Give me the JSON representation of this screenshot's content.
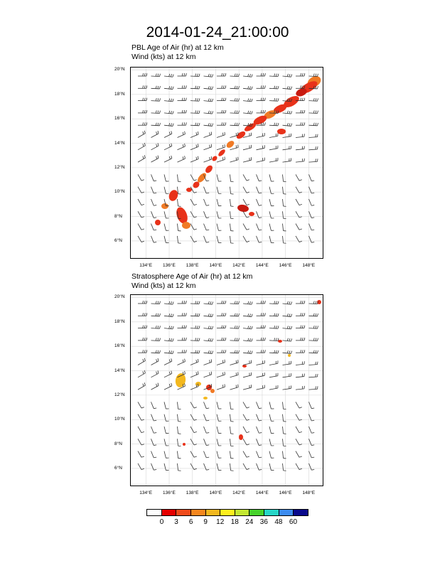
{
  "figure": {
    "title": "2014-01-24_21:00:00"
  },
  "panels": [
    {
      "line1": "PBL Age of Air   (hr)     at   12 km",
      "line2": "Wind   (kts)     at   12 km"
    },
    {
      "line1": "Stratosphere Age of Air   (hr)     at   12 km",
      "line2": "Wind   (kts)     at   12 km"
    }
  ],
  "axes": {
    "lat_ticks": [
      "20°N",
      "18°N",
      "16°N",
      "14°N",
      "12°N",
      "10°N",
      "8°N",
      "6°N"
    ],
    "lon_ticks": [
      "134°E",
      "136°E",
      "138°E",
      "140°E",
      "142°E",
      "144°E",
      "146°E",
      "148°E"
    ]
  },
  "colorbar": {
    "colors": [
      "#ffffff",
      "#e60000",
      "#f04b1c",
      "#f5871f",
      "#f3b81f",
      "#ffef1e",
      "#c3e832",
      "#46d22c",
      "#27d6c8",
      "#3c8cf0",
      "#0a0a8c"
    ],
    "labels": [
      "0",
      "3",
      "6",
      "9",
      "12",
      "18",
      "24",
      "36",
      "48",
      "60"
    ]
  }
}
